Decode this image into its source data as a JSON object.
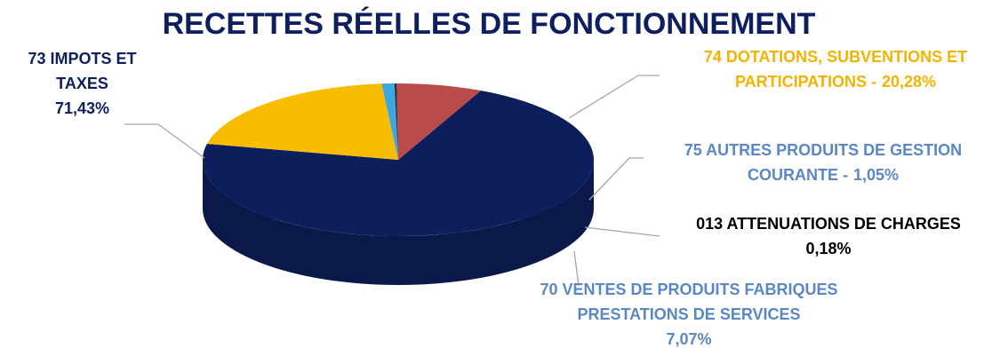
{
  "chart_data": {
    "type": "pie",
    "title": "RECETTES RÉELLES DE FONCTIONNEMENT",
    "categories": [
      "73  IMPOTS ET TAXES",
      "74  DOTATIONS, SUBVENTIONS ET PARTICIPATIONS -",
      "75  AUTRES PRODUITS DE GESTION COURANTE -",
      "013  ATTENUATIONS DE CHARGES",
      "70  VENTES DE PRODUITS FABRIQUES PRESTATIONS DE SERVICES"
    ],
    "values": [
      71.43,
      20.28,
      1.05,
      0.18,
      7.07
    ],
    "value_labels": [
      "71,43%",
      "20,28%",
      "1,05%",
      "0,18%",
      "7,07%"
    ],
    "colors": [
      "#0c1f5c",
      "#f8bd00",
      "#3ea6e0",
      "#2a2a2a",
      "#b94c4a"
    ],
    "label_colors": [
      "#0d1f5e",
      "#f2b400",
      "#5b87c5",
      "#000000",
      "#5b87c5"
    ]
  }
}
